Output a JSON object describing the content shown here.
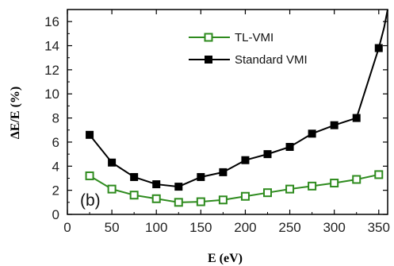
{
  "chart_data": {
    "type": "line",
    "panel_label": "(b)",
    "xlabel": "E (eV)",
    "ylabel": "ΔE/E (%)",
    "xlim": [
      0,
      360
    ],
    "ylim": [
      0,
      17
    ],
    "xticks": [
      0,
      50,
      100,
      150,
      200,
      250,
      300,
      350
    ],
    "yticks": [
      0,
      2,
      4,
      6,
      8,
      10,
      12,
      14,
      16
    ],
    "legend_position": "top-right",
    "series": [
      {
        "name": "TL-VMI",
        "color": "#2e8b1e",
        "marker": "open-square",
        "x": [
          25,
          50,
          75,
          100,
          125,
          150,
          175,
          200,
          225,
          250,
          275,
          300,
          325,
          350
        ],
        "y": [
          3.2,
          2.1,
          1.6,
          1.3,
          1.0,
          1.05,
          1.2,
          1.5,
          1.8,
          2.1,
          2.35,
          2.6,
          2.9,
          3.3
        ]
      },
      {
        "name": "Standard VMI",
        "color": "#000000",
        "marker": "filled-square",
        "x": [
          25,
          50,
          75,
          100,
          125,
          150,
          175,
          200,
          225,
          250,
          275,
          300,
          325,
          350
        ],
        "y": [
          6.6,
          4.3,
          3.1,
          2.5,
          2.3,
          3.1,
          3.5,
          4.5,
          5.0,
          5.6,
          6.7,
          7.4,
          8.0,
          13.8
        ]
      }
    ],
    "overflow_tail": {
      "series": "Standard VMI",
      "x": [
        350,
        356,
        360
      ],
      "y": [
        13.8,
        15.5,
        17
      ]
    }
  }
}
